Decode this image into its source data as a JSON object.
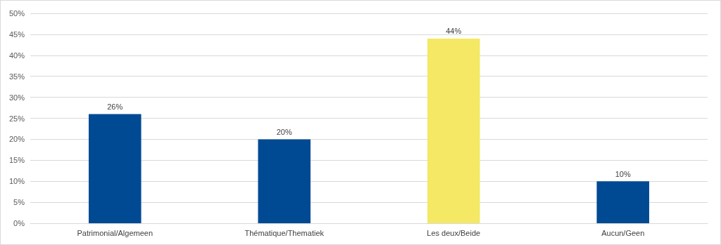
{
  "chart_data": {
    "type": "bar",
    "categories": [
      "Patrimonial/Algemeen",
      "Thématique/Thematiek",
      "Les deux/Beide",
      "Aucun/Geen"
    ],
    "values": [
      26,
      20,
      44,
      10
    ],
    "colors": [
      "#004a93",
      "#004a93",
      "#f4e865",
      "#004a93"
    ],
    "value_labels": [
      "26%",
      "20%",
      "44%",
      "10%"
    ],
    "ylim": [
      0,
      50
    ],
    "yticks": [
      {
        "value": 0,
        "label": "0%"
      },
      {
        "value": 5,
        "label": "5%"
      },
      {
        "value": 10,
        "label": "10%"
      },
      {
        "value": 15,
        "label": "15%"
      },
      {
        "value": 20,
        "label": "20%"
      },
      {
        "value": 25,
        "label": "25%"
      },
      {
        "value": 30,
        "label": "30%"
      },
      {
        "value": 35,
        "label": "35%"
      },
      {
        "value": 40,
        "label": "40%"
      },
      {
        "value": 45,
        "label": "45%"
      },
      {
        "value": 50,
        "label": "50%"
      }
    ],
    "grid": true
  }
}
